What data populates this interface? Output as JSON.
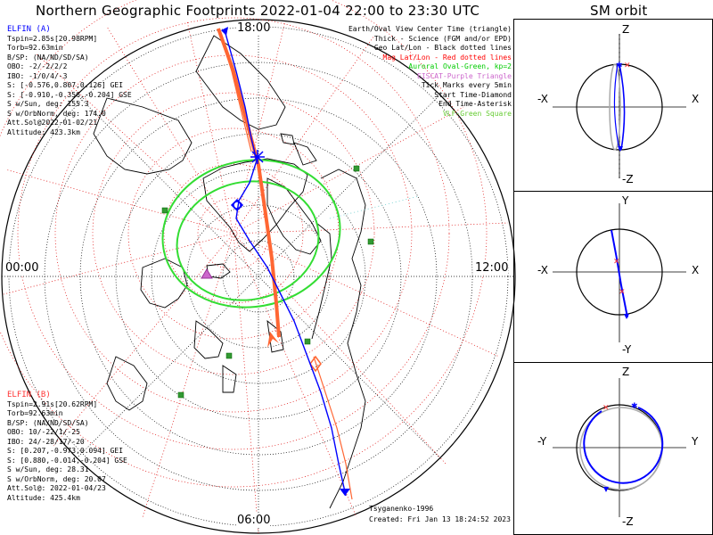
{
  "title": "Northern Geographic Footprints 2022-01-04 22:00 to 23:30 UTC",
  "sm_title": "SM orbit",
  "time_labels": {
    "top": "18:00",
    "left": "00:00",
    "right": "12:00",
    "bottom": "06:00"
  },
  "legend": [
    {
      "text": "Earth/Oval View Center Time (triangle)",
      "color": "#000000"
    },
    {
      "text": "Thick - Science (FGM and/or EPD)",
      "color": "#000000"
    },
    {
      "text": "Geo Lat/Lon - Black dotted lines",
      "color": "#000000"
    },
    {
      "text": "Mag Lat/Lon - Red dotted lines",
      "color": "#ff0000"
    },
    {
      "text": "Auroral Oval-Green, kp=2",
      "color": "#00cc00"
    },
    {
      "text": "EISCAT-Purple Triangle",
      "color": "#cc66cc"
    },
    {
      "text": "Tick Marks every 5min",
      "color": "#000000"
    },
    {
      "text": "Start Time-Diamond",
      "color": "#000000"
    },
    {
      "text": "End Time-Asterisk",
      "color": "#000000"
    },
    {
      "text": "VLF-Green Square",
      "color": "#66cc33"
    }
  ],
  "elfin_a": {
    "color": "#0000ff",
    "name": "ELFIN (A)",
    "lines": [
      "Tspin=2.85s[20.98RPM]",
      "Torb=92.63min",
      "B/SP: (NA/ND/SD/SA)",
      "OBO: -2/-2/2/2",
      "IBO: -1/0/4/-3",
      "S: [-0.576,0.807,0.126] GEI",
      "S: [-0.910,-0.356,-0.204] GSE",
      "S w/Sun, deg: 155.3",
      "S w/OrbNorm, deg: 174.0",
      "Att.Sol@2022-01-02/21",
      "Altitude: 423.3km"
    ]
  },
  "elfin_b": {
    "color": "#ff0000",
    "name": "ELFIN (B)",
    "lines": [
      "Tspin=2.91s[20.62RPM]",
      "Torb=92.63min",
      "B/SP: (NA/ND/SD/SA)",
      "OBO: 10/-22/1/-25",
      "IBO: 24/-28/17/-20",
      "S: [0.207,-0.973,0.094] GEI",
      "S: [0.880,-0.014,-0.204] GSE",
      "S w/Sun, deg: 28.31",
      "S w/OrbNorm, deg: 20.07",
      "Att.Sol@: 2022-01-04/23",
      "Altitude: 425.4km"
    ]
  },
  "credit": "Tsyganenko-1996",
  "created": "Created: Fri Jan 13 18:24:52 2023",
  "sm_panels": [
    {
      "top": "Z",
      "bottom": "-Z",
      "left": "-X",
      "right": "X"
    },
    {
      "top": "Y",
      "bottom": "-Y",
      "left": "-X",
      "right": "X"
    },
    {
      "top": "Z",
      "bottom": "-Z",
      "left": "-Y",
      "right": "Y"
    }
  ],
  "colors": {
    "elfin_a": "#0000ff",
    "elfin_b": "#ff0000",
    "trace_b": "#ff6633",
    "geo_grid": "#000000",
    "mag_grid": "#dd0000",
    "oval": "#33dd33",
    "vlf": "#339933",
    "eiscat": "#cc66cc",
    "sm_orbit_gray": "#aaaaaa"
  }
}
